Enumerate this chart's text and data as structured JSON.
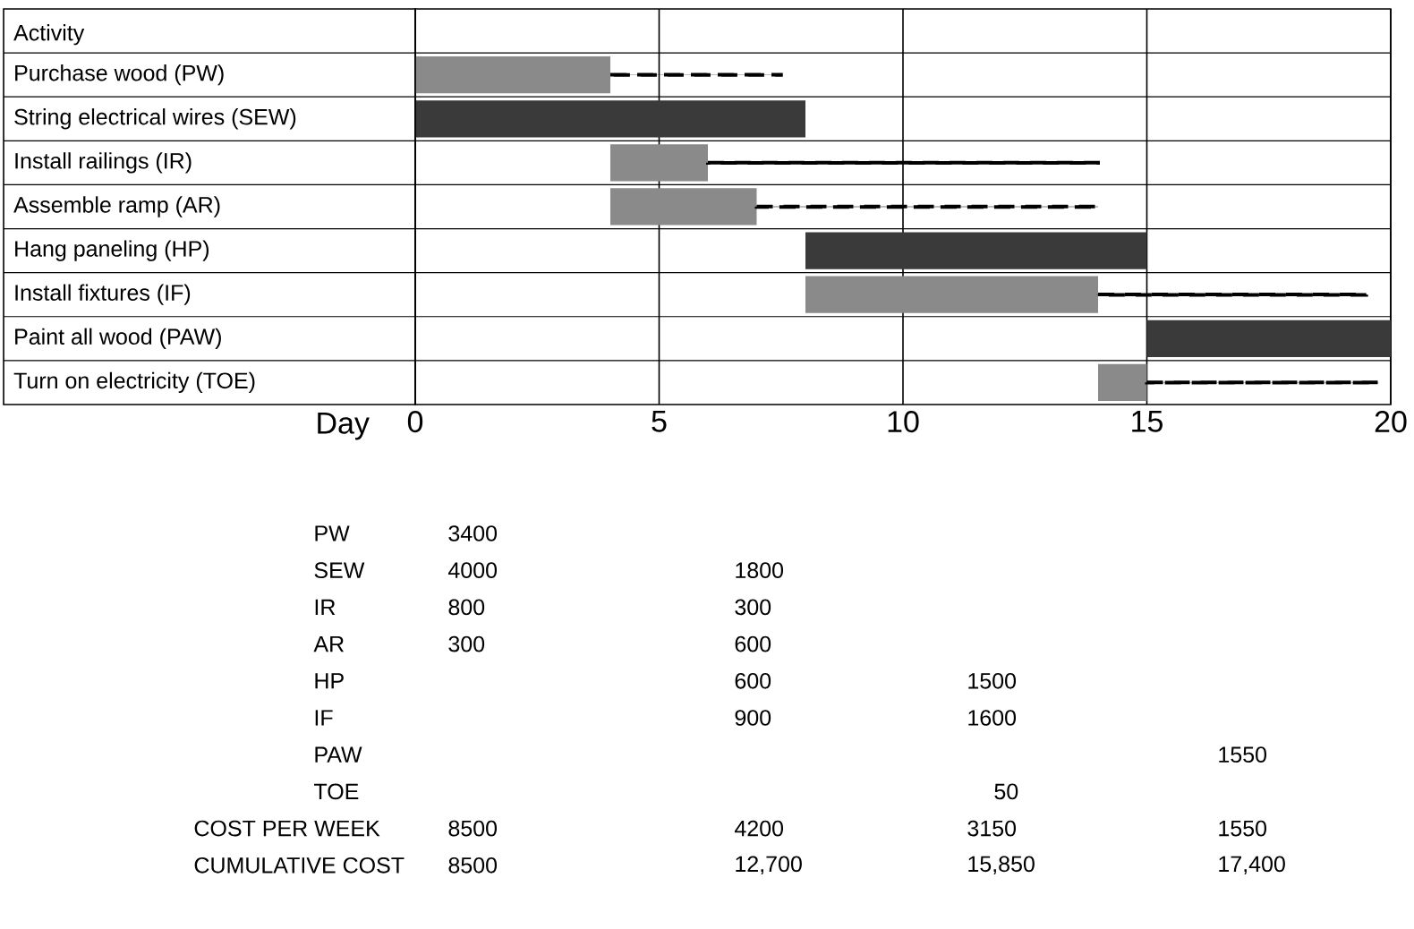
{
  "chart_data": {
    "type": "bar",
    "orientation": "horizontal",
    "ylabel": "Activity",
    "xlabel": "Day",
    "categories": [
      "Purchase wood (PW)",
      "String electrical wires (SEW)",
      "Install railings (IR)",
      "Assemble ramp (AR)",
      "Hang paneling (HP)",
      "Install fixtures (IF)",
      "Paint all wood (PAW)",
      "Turn on electricity (TOE)"
    ],
    "series": [
      {
        "base": [
          0,
          0,
          4,
          4,
          8,
          8,
          15,
          14
        ],
        "values": [
          4,
          8,
          2,
          3,
          7,
          6,
          5,
          1
        ],
        "colors": [
          "#8a8a8a",
          "#3a3a3a",
          "#8a8a8a",
          "#8a8a8a",
          "#3a3a3a",
          "#8a8a8a",
          "#3a3a3a",
          "#8a8a8a"
        ]
      },
      {
        "line_style": "dashed",
        "color": "#000000",
        "base": [
          4,
          null,
          6,
          7,
          null,
          14,
          null,
          15
        ],
        "values": [
          3.5,
          null,
          8,
          7,
          null,
          5.5,
          null,
          4.75
        ]
      }
    ],
    "xlim": [
      0,
      20
    ],
    "xticks": [
      0,
      5,
      10,
      15,
      20
    ],
    "grid": "x",
    "annotations": [
      "PW",
      "3400",
      "SEW",
      "4000",
      "1800",
      "IR",
      "800",
      "300",
      "AR",
      "300",
      "600",
      "HP",
      "600",
      "1500",
      "IF",
      "900",
      "1600",
      "PAW",
      "1550",
      "TOE",
      "50",
      "COST PER WEEK",
      "8500",
      "4200",
      "3150",
      "1550",
      "CUMULATIVE COST",
      "8500",
      "12,700",
      "15,850",
      "17,400"
    ]
  }
}
